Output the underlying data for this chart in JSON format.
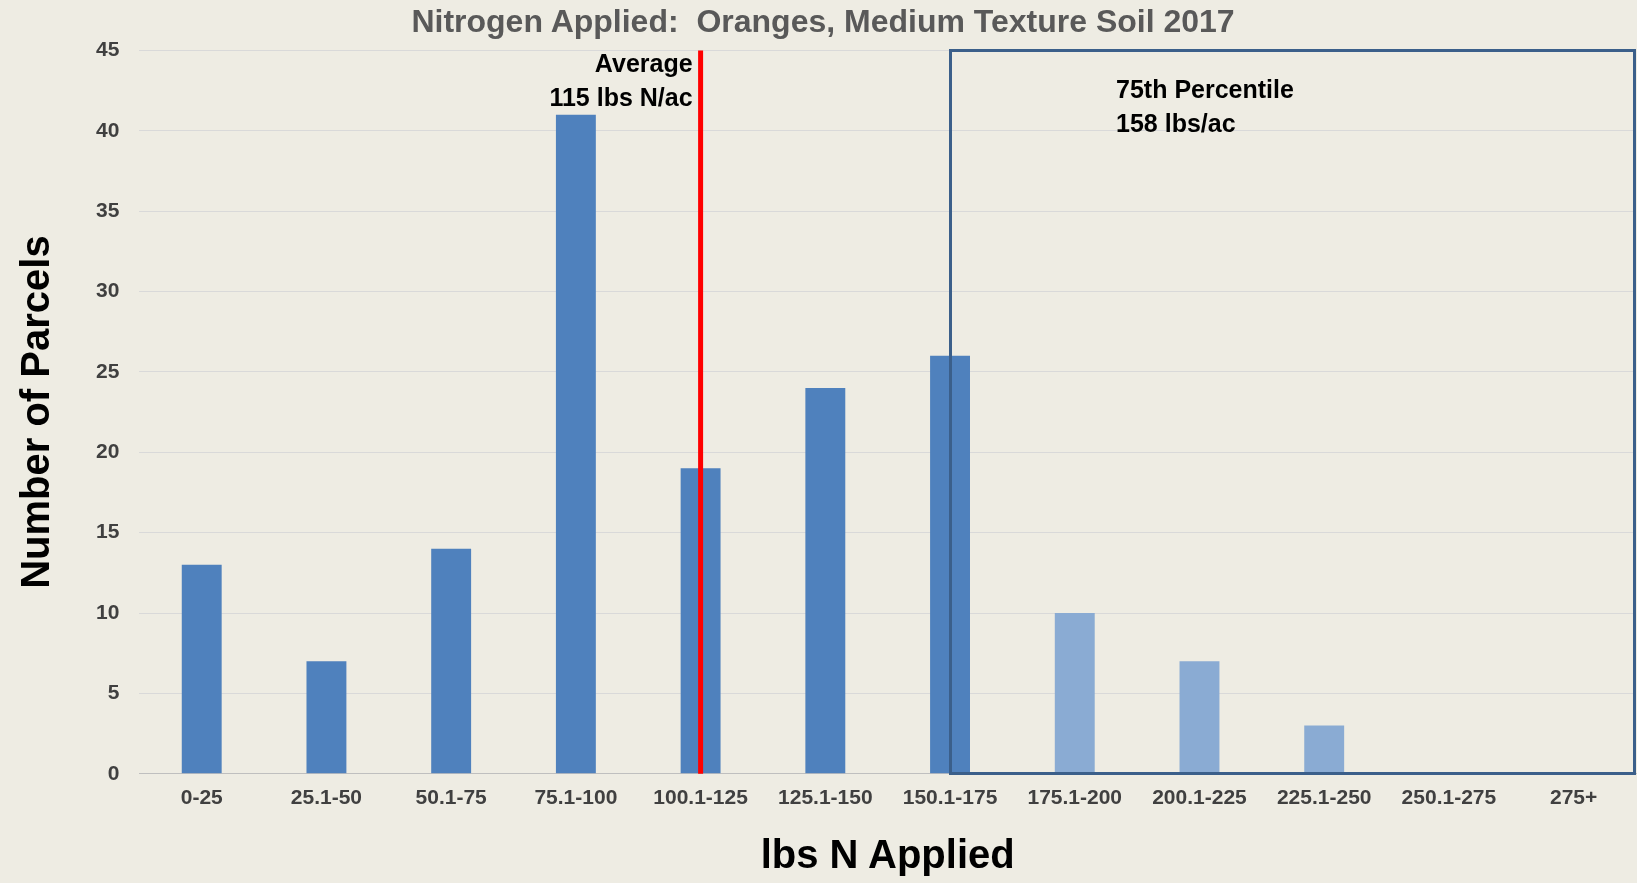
{
  "chart_data": {
    "type": "bar",
    "title": "Nitrogen Applied:  Oranges, Medium Texture Soil 2017",
    "xlabel": "lbs N Applied",
    "ylabel": "Number of Parcels",
    "categories": [
      "0-25",
      "25.1-50",
      "50.1-75",
      "75.1-100",
      "100.1-125",
      "125.1-150",
      "150.1-175",
      "175.1-200",
      "200.1-225",
      "225.1-250",
      "250.1-275",
      "275+"
    ],
    "values": [
      13,
      7,
      14,
      41,
      19,
      24,
      26,
      10,
      7,
      3,
      0,
      0
    ],
    "colors": [
      "#4f81bd",
      "#4f81bd",
      "#4f81bd",
      "#4f81bd",
      "#4f81bd",
      "#4f81bd",
      "#4f81bd",
      "#8aabd3",
      "#8aabd3",
      "#8aabd3",
      "#8aabd3",
      "#8aabd3"
    ],
    "ylim": [
      0,
      45
    ],
    "yticks": [
      0,
      5,
      10,
      15,
      20,
      25,
      30,
      35,
      40,
      45
    ],
    "grid": "y",
    "legend": false,
    "ref_lines": [
      {
        "axis": "x",
        "value": "100.1-125",
        "label": "Average\n115 lbs N/ac",
        "color": "#ff0000"
      }
    ],
    "annotations": [
      "75th Percentile\n158 lbs/ac"
    ]
  }
}
